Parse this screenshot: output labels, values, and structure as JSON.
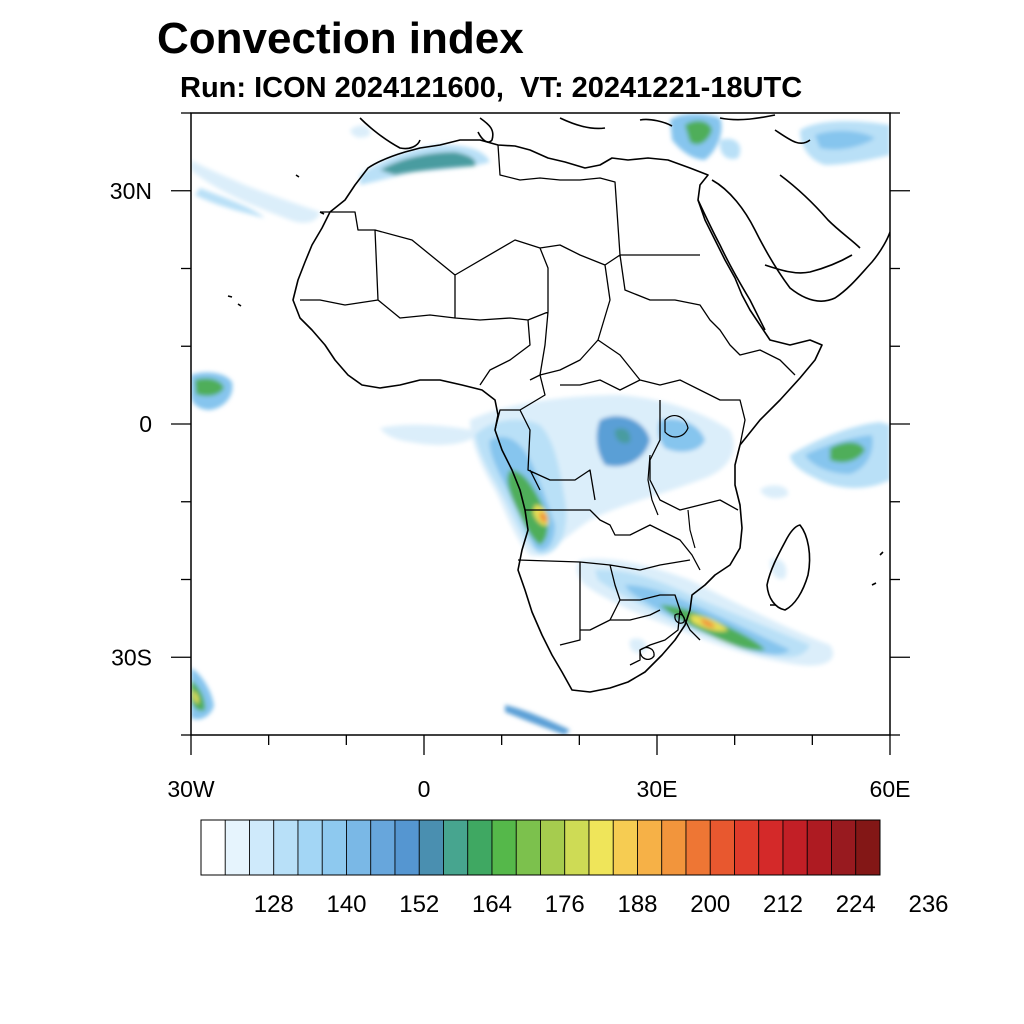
{
  "figure": {
    "title": "Convection index",
    "subtitle": "Run: ICON 2024121600,  VT: 20241221-18UTC"
  },
  "map": {
    "projection": "cylindrical equidistant",
    "lon_range": [
      -30,
      60
    ],
    "lat_range": [
      -40,
      40
    ],
    "lon_ticks": [
      {
        "value": -30,
        "label": "30W"
      },
      {
        "value": 0,
        "label": "0"
      },
      {
        "value": 30,
        "label": "30E"
      },
      {
        "value": 60,
        "label": "60E"
      }
    ],
    "lat_ticks": [
      {
        "value": 30,
        "label": "30N"
      },
      {
        "value": 0,
        "label": "0"
      },
      {
        "value": -30,
        "label": "30S"
      }
    ]
  },
  "colorbar": {
    "colors": [
      "#ffffff",
      "#e6f4fd",
      "#cfeafb",
      "#b8e0f8",
      "#a3d6f5",
      "#8ec9ef",
      "#7ab8e6",
      "#67a6dc",
      "#5596d1",
      "#4a8fb0",
      "#47a58f",
      "#3fa862",
      "#55b84a",
      "#7cc14d",
      "#a6cc4e",
      "#cedb55",
      "#efe55a",
      "#f6cc52",
      "#f6b147",
      "#f2953c",
      "#ee7634",
      "#e8582f",
      "#df3b2b",
      "#d42929",
      "#c21f26",
      "#ae1b22",
      "#981a1f",
      "#831716"
    ],
    "labels": [
      "128",
      "140",
      "152",
      "164",
      "176",
      "188",
      "200",
      "212",
      "224",
      "236"
    ]
  },
  "convection_areas": {
    "colors": {
      "very_light": "#dbeefa",
      "light": "#b9e0f7",
      "medium": "#86c5ee",
      "blue": "#5a9fd6",
      "teal": "#4a9ca0",
      "green": "#4fae5a",
      "yellow": "#e6df57",
      "orange": "#f2953c",
      "red": "#df3b2b"
    }
  }
}
